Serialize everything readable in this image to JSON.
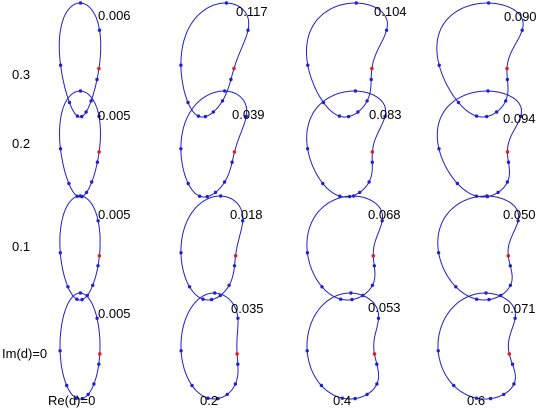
{
  "row_labels": [
    "0.3",
    "0.2",
    "0.1",
    "Im(d)=0"
  ],
  "col_labels": [
    "Re(d)=0",
    "0.2",
    "0.4",
    "0.6"
  ],
  "values": [
    [
      "0.006",
      "0.117",
      "0.104",
      "0.090"
    ],
    [
      "0.005",
      "0.039",
      "0.083",
      "0.094"
    ],
    [
      "0.005",
      "0.018",
      "0.068",
      "0.050"
    ],
    [
      "0.005",
      "0.035",
      "0.053",
      "0.071"
    ]
  ],
  "colors": {
    "curve": "#2020d0",
    "point": "#2020d0",
    "marker": "#e02020"
  }
}
